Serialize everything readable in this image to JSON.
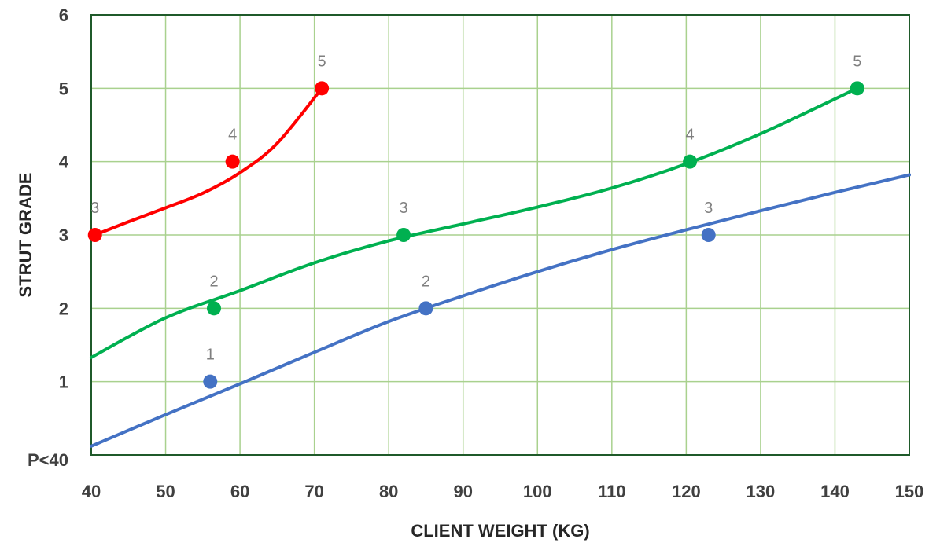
{
  "chart_data": {
    "type": "scatter",
    "xlabel": "CLIENT WEIGHT (KG)",
    "ylabel": "STRUT GRADE",
    "xlim": [
      40,
      150
    ],
    "ylim": [
      0,
      6
    ],
    "x_ticks": [
      40,
      50,
      60,
      70,
      80,
      90,
      100,
      110,
      120,
      130,
      140,
      150
    ],
    "y_ticks": [
      {
        "value": 0,
        "label": "P<40"
      },
      {
        "value": 1,
        "label": "1"
      },
      {
        "value": 2,
        "label": "2"
      },
      {
        "value": 3,
        "label": "3"
      },
      {
        "value": 4,
        "label": "4"
      },
      {
        "value": 5,
        "label": "5"
      },
      {
        "value": 6,
        "label": "6"
      }
    ],
    "grid": true,
    "legend": "none",
    "series": [
      {
        "color": "#4472C4",
        "points": [
          {
            "x": 56,
            "y": 1,
            "label": "1"
          },
          {
            "x": 85,
            "y": 2,
            "label": "2"
          },
          {
            "x": 123,
            "y": 3,
            "label": "3"
          }
        ],
        "trendline": [
          [
            40,
            0.12
          ],
          [
            50,
            0.55
          ],
          [
            60,
            0.97
          ],
          [
            70,
            1.4
          ],
          [
            80,
            1.82
          ],
          [
            90,
            2.17
          ],
          [
            100,
            2.5
          ],
          [
            110,
            2.8
          ],
          [
            120,
            3.07
          ],
          [
            130,
            3.33
          ],
          [
            140,
            3.58
          ],
          [
            150,
            3.82
          ]
        ]
      },
      {
        "color": "#00B050",
        "points": [
          {
            "x": 56.5,
            "y": 2,
            "label": "2"
          },
          {
            "x": 82,
            "y": 3,
            "label": "3"
          },
          {
            "x": 120.5,
            "y": 4,
            "label": "4"
          },
          {
            "x": 143,
            "y": 5,
            "label": "5"
          }
        ],
        "trendline": [
          [
            40,
            1.33
          ],
          [
            50,
            1.87
          ],
          [
            60,
            2.24
          ],
          [
            70,
            2.62
          ],
          [
            80,
            2.92
          ],
          [
            90,
            3.15
          ],
          [
            100,
            3.38
          ],
          [
            110,
            3.64
          ],
          [
            120,
            3.97
          ],
          [
            130,
            4.38
          ],
          [
            143,
            5.0
          ]
        ]
      },
      {
        "color": "#FF0000",
        "points": [
          {
            "x": 40.5,
            "y": 3,
            "label": "3"
          },
          {
            "x": 59,
            "y": 4,
            "label": "4"
          },
          {
            "x": 71,
            "y": 5,
            "label": "5"
          }
        ],
        "trendline": [
          [
            40.5,
            3.0
          ],
          [
            45,
            3.18
          ],
          [
            50,
            3.37
          ],
          [
            55,
            3.57
          ],
          [
            60,
            3.85
          ],
          [
            65,
            4.25
          ],
          [
            71,
            5.0
          ]
        ]
      }
    ]
  }
}
